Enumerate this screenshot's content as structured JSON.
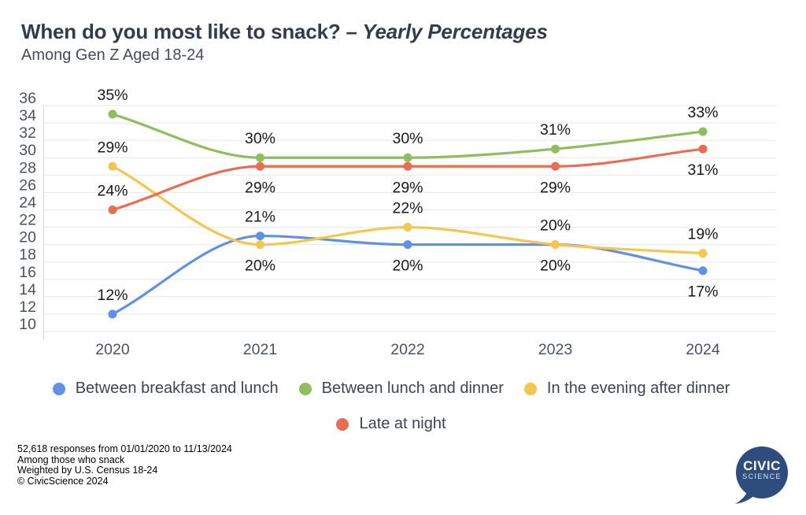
{
  "header": {
    "title_main": "When do you most like to snack? ",
    "title_em": "– Yearly Percentages",
    "subtitle": "Among Gen Z Aged 18-24"
  },
  "chart_data": {
    "type": "line",
    "x": [
      "2020",
      "2021",
      "2022",
      "2023",
      "2024"
    ],
    "series": [
      {
        "name": "Between breakfast and lunch",
        "color": "#6191e2",
        "values": [
          12,
          21,
          20,
          20,
          17
        ],
        "label_side": [
          "above",
          "above",
          "below",
          "below",
          "below"
        ]
      },
      {
        "name": "Between lunch and dinner",
        "color": "#8fbd5f",
        "values": [
          35,
          30,
          30,
          31,
          33
        ],
        "label_side": [
          "above",
          "above",
          "above",
          "above",
          "above"
        ]
      },
      {
        "name": "In the evening after dinner",
        "color": "#f3c64e",
        "values": [
          29,
          20,
          22,
          20,
          19
        ],
        "label_side": [
          "above",
          "below",
          "above",
          "above",
          "above"
        ]
      },
      {
        "name": "Late at night",
        "color": "#e86d52",
        "values": [
          24,
          29,
          29,
          29,
          31
        ],
        "label_side": [
          "above",
          "below",
          "below",
          "below",
          "below"
        ]
      }
    ],
    "data_label_suffix": "%",
    "title": "When do you most like to snack? – Yearly Percentages",
    "subtitle": "Among Gen Z Aged 18-24",
    "xlabel": "",
    "ylabel": "",
    "ylim": [
      10,
      36
    ],
    "ytick_step": 2,
    "grid": true,
    "legend_position": "bottom",
    "legend_rows": [
      [
        0,
        1,
        2
      ],
      [
        3
      ]
    ]
  },
  "footer": {
    "lines": [
      "52,618 responses from 01/01/2020 to 11/13/2024",
      "Among those who snack",
      "Weighted by U.S. Census 18-24",
      "© CivicScience 2024"
    ]
  },
  "logo": {
    "line1": "CIVIC",
    "line2": "SCIENCE",
    "color": "#2e4d7d"
  }
}
